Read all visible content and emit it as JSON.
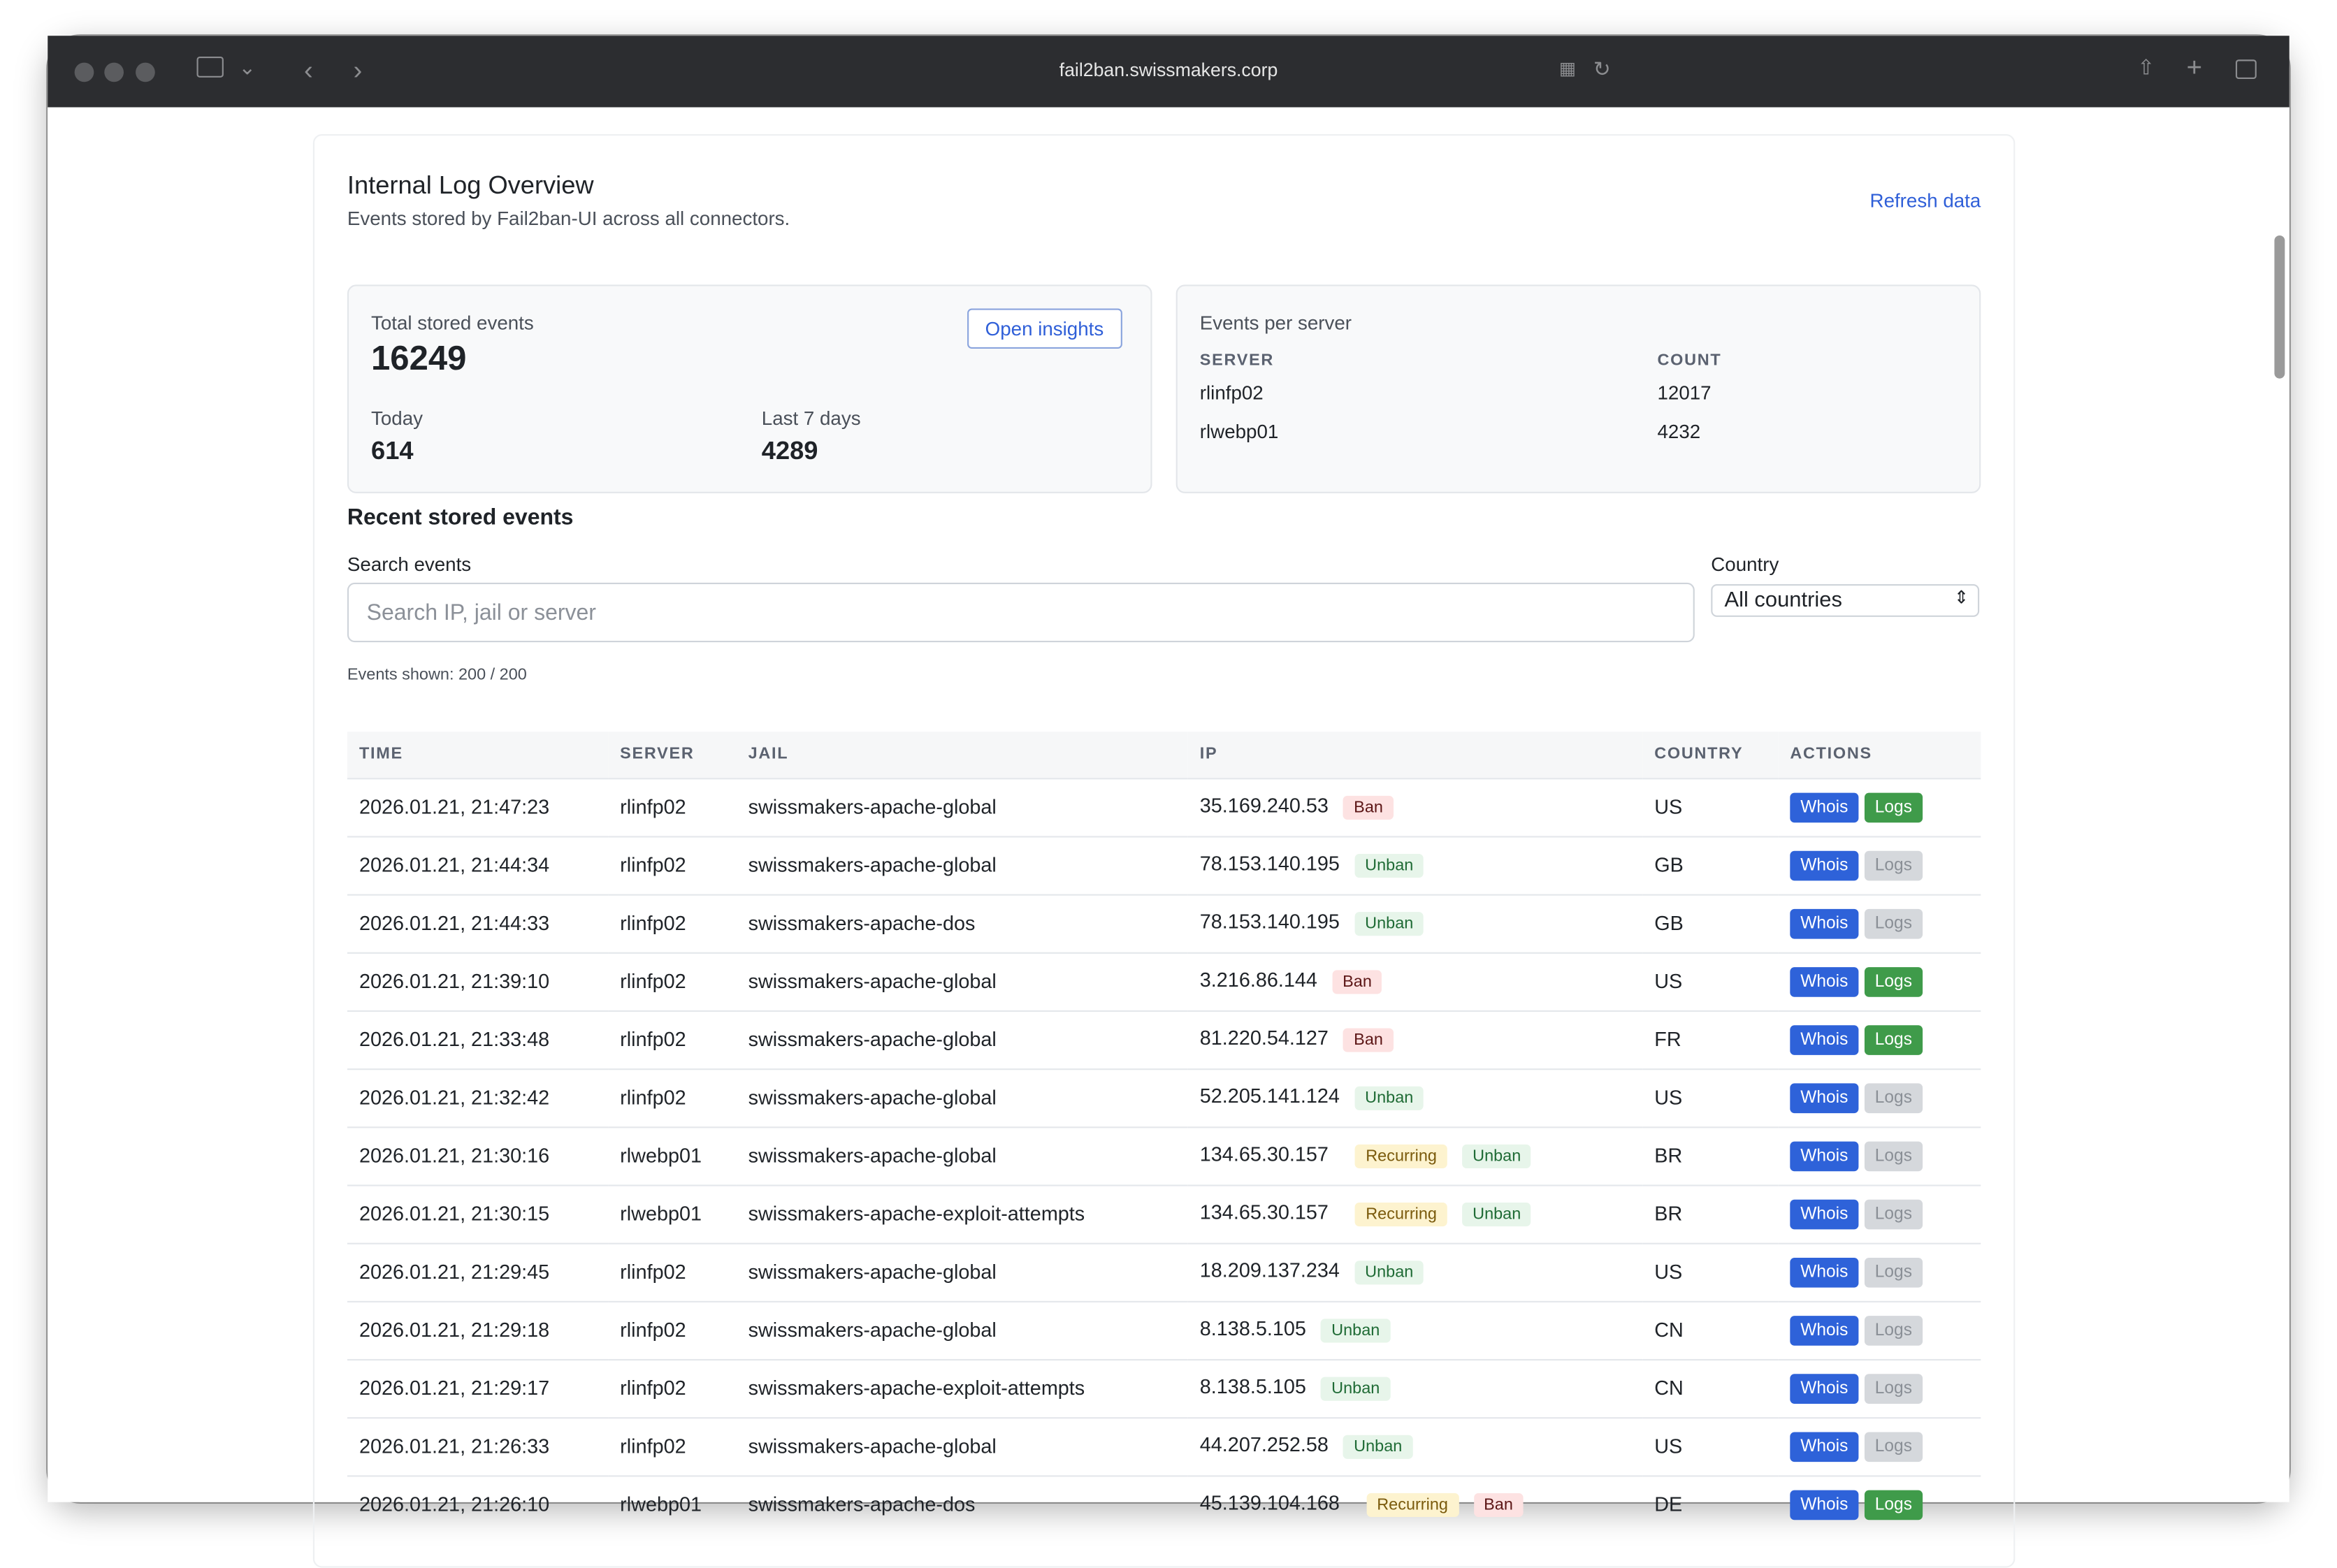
{
  "browser": {
    "url": "fail2ban.swissmakers.corp"
  },
  "header": {
    "title": "Internal Log Overview",
    "subtitle": "Events stored by Fail2ban-UI across all connectors.",
    "refresh": "Refresh data"
  },
  "summary": {
    "total_label": "Total stored events",
    "total": 16249,
    "open_insights": "Open insights",
    "today_label": "Today",
    "today": 614,
    "week_label": "Last 7 days",
    "week": 4289
  },
  "per_server": {
    "title": "Events per server",
    "columns": [
      "SERVER",
      "COUNT"
    ],
    "rows": [
      [
        "rlinfp02",
        12017
      ],
      [
        "rlwebp01",
        4232
      ]
    ]
  },
  "recent": {
    "title": "Recent stored events",
    "search_label": "Search events",
    "search_placeholder": "Search IP, jail or server",
    "country_label": "Country",
    "country_value": "All countries",
    "shown": "Events shown: 200 / 200"
  },
  "table": {
    "columns": [
      "TIME",
      "SERVER",
      "JAIL",
      "IP",
      "COUNTRY",
      "ACTIONS"
    ],
    "rows": [
      {
        "time": "2026.01.21, 21:47:23",
        "server": "rlinfp02",
        "jail": "swissmakers-apache-global",
        "ip": "35.169.240.53",
        "tags": [
          "Ban"
        ],
        "country": "US",
        "actions": [
          "Whois",
          "Logs"
        ],
        "logs_enabled": true
      },
      {
        "time": "2026.01.21, 21:44:34",
        "server": "rlinfp02",
        "jail": "swissmakers-apache-global",
        "ip": "78.153.140.195",
        "tags": [
          "Unban"
        ],
        "country": "GB",
        "actions": [
          "Whois",
          "Logs"
        ],
        "logs_enabled": false
      },
      {
        "time": "2026.01.21, 21:44:33",
        "server": "rlinfp02",
        "jail": "swissmakers-apache-dos",
        "ip": "78.153.140.195",
        "tags": [
          "Unban"
        ],
        "country": "GB",
        "actions": [
          "Whois",
          "Logs"
        ],
        "logs_enabled": false
      },
      {
        "time": "2026.01.21, 21:39:10",
        "server": "rlinfp02",
        "jail": "swissmakers-apache-global",
        "ip": "3.216.86.144",
        "tags": [
          "Ban"
        ],
        "country": "US",
        "actions": [
          "Whois",
          "Logs"
        ],
        "logs_enabled": true
      },
      {
        "time": "2026.01.21, 21:33:48",
        "server": "rlinfp02",
        "jail": "swissmakers-apache-global",
        "ip": "81.220.54.127",
        "tags": [
          "Ban"
        ],
        "country": "FR",
        "actions": [
          "Whois",
          "Logs"
        ],
        "logs_enabled": true
      },
      {
        "time": "2026.01.21, 21:32:42",
        "server": "rlinfp02",
        "jail": "swissmakers-apache-global",
        "ip": "52.205.141.124",
        "tags": [
          "Unban"
        ],
        "country": "US",
        "actions": [
          "Whois",
          "Logs"
        ],
        "logs_enabled": false
      },
      {
        "time": "2026.01.21, 21:30:16",
        "server": "rlwebp01",
        "jail": "swissmakers-apache-global",
        "ip": "134.65.30.157",
        "tags": [
          "Recurring",
          "Unban"
        ],
        "country": "BR",
        "actions": [
          "Whois",
          "Logs"
        ],
        "logs_enabled": false
      },
      {
        "time": "2026.01.21, 21:30:15",
        "server": "rlwebp01",
        "jail": "swissmakers-apache-exploit-attempts",
        "ip": "134.65.30.157",
        "tags": [
          "Recurring",
          "Unban"
        ],
        "country": "BR",
        "actions": [
          "Whois",
          "Logs"
        ],
        "logs_enabled": false
      },
      {
        "time": "2026.01.21, 21:29:45",
        "server": "rlinfp02",
        "jail": "swissmakers-apache-global",
        "ip": "18.209.137.234",
        "tags": [
          "Unban"
        ],
        "country": "US",
        "actions": [
          "Whois",
          "Logs"
        ],
        "logs_enabled": false
      },
      {
        "time": "2026.01.21, 21:29:18",
        "server": "rlinfp02",
        "jail": "swissmakers-apache-global",
        "ip": "8.138.5.105",
        "tags": [
          "Unban"
        ],
        "country": "CN",
        "actions": [
          "Whois",
          "Logs"
        ],
        "logs_enabled": false
      },
      {
        "time": "2026.01.21, 21:29:17",
        "server": "rlinfp02",
        "jail": "swissmakers-apache-exploit-attempts",
        "ip": "8.138.5.105",
        "tags": [
          "Unban"
        ],
        "country": "CN",
        "actions": [
          "Whois",
          "Logs"
        ],
        "logs_enabled": false
      },
      {
        "time": "2026.01.21, 21:26:33",
        "server": "rlinfp02",
        "jail": "swissmakers-apache-global",
        "ip": "44.207.252.58",
        "tags": [
          "Unban"
        ],
        "country": "US",
        "actions": [
          "Whois",
          "Logs"
        ],
        "logs_enabled": false
      },
      {
        "time": "2026.01.21, 21:26:10",
        "server": "rlwebp01",
        "jail": "swissmakers-apache-dos",
        "ip": "45.139.104.168",
        "tags": [
          "Recurring",
          "Ban"
        ],
        "country": "DE",
        "actions": [
          "Whois",
          "Logs"
        ],
        "logs_enabled": true
      }
    ]
  }
}
